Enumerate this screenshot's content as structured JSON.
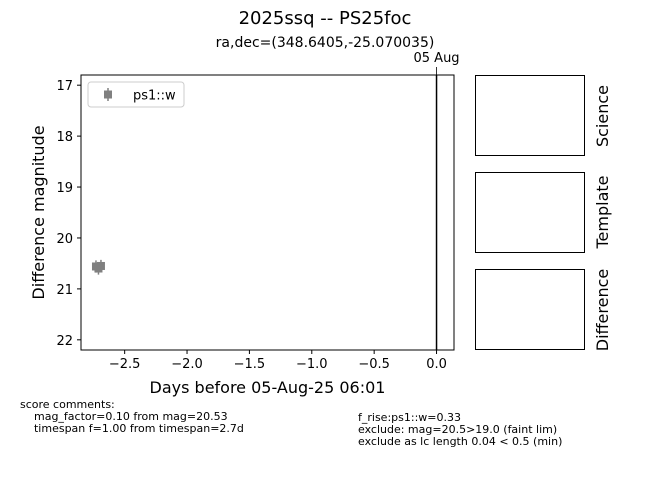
{
  "header": {
    "title": "2025ssq -- PS25foc",
    "subtitle": "ra,dec=(348.6405,-25.070035)"
  },
  "chart_data": {
    "type": "scatter",
    "xlabel": "Days before 05-Aug-25 06:01",
    "ylabel": "Difference magnitude",
    "xlim": [
      -2.85,
      0.14
    ],
    "ylim": [
      22.2,
      16.8
    ],
    "y_inverted": true,
    "xticks": [
      -2.5,
      -2.0,
      -1.5,
      -1.0,
      -0.5,
      0.0
    ],
    "xtick_labels": [
      "−2.5",
      "−2.0",
      "−1.5",
      "−1.0",
      "−0.5",
      "0.0"
    ],
    "yticks": [
      17,
      18,
      19,
      20,
      21,
      22
    ],
    "ytick_labels": [
      "17",
      "18",
      "19",
      "20",
      "21",
      "22"
    ],
    "grid": false,
    "legend": {
      "placement": "upper-left",
      "entries": [
        "ps1::w"
      ]
    },
    "series": [
      {
        "name": "ps1::w",
        "color": "#808080",
        "marker": "square",
        "points": [
          {
            "x": -2.73,
            "y": 20.56,
            "yerr": 0.12
          },
          {
            "x": -2.71,
            "y": 20.6,
            "yerr": 0.12
          },
          {
            "x": -2.69,
            "y": 20.55,
            "yerr": 0.12
          }
        ]
      }
    ],
    "vlines": [
      {
        "x": 0.0,
        "label": "05 Aug",
        "color": "#000000"
      }
    ]
  },
  "stamps": [
    {
      "label": "Science"
    },
    {
      "label": "Template"
    },
    {
      "label": "Difference"
    }
  ],
  "comments": {
    "left": "score comments:\n    mag_factor=0.10 from mag=20.53\n    timespan f=1.00 from timespan=2.7d",
    "right": "f_rise:ps1::w=0.33\nexclude: mag=20.5>19.0 (faint lim)\nexclude as lc length 0.04 < 0.5 (min)"
  }
}
